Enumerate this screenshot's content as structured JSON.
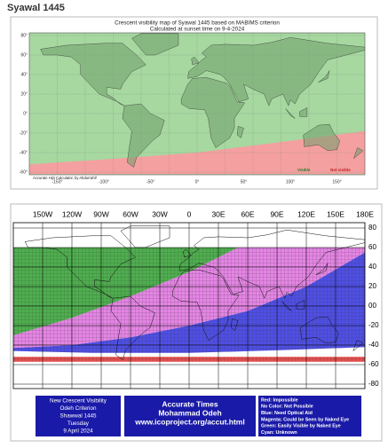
{
  "heading": "Syawal 1445",
  "map1": {
    "title": [
      "Crescent visibility map of Syawal 1445 based on MABIMS criterion",
      "Calculated at sunset time on 9-4-2024"
    ],
    "y_labels": [
      "80°",
      "60°",
      "40°",
      "20°",
      "0°",
      "-20°",
      "-40°",
      "-60°"
    ],
    "x_labels": [
      "-150°",
      "-100°",
      "-50°",
      "0°",
      "50°",
      "100°",
      "150°"
    ],
    "credit": "Accurate Hijri Calculator, by Abdurrahif",
    "legend": [
      "Visible",
      "Not visible"
    ]
  },
  "map2": {
    "lon_labels": [
      "150W",
      "120W",
      "90W",
      "60W",
      "30W",
      "0",
      "30E",
      "60E",
      "90E",
      "120E",
      "150E",
      "180E"
    ],
    "lat_labels": [
      "80",
      "60",
      "40",
      "20",
      "00",
      "-20",
      "-40",
      "-60",
      "-80"
    ],
    "info_box": [
      "New Crescent Visibility",
      "Odeh Criterion",
      "Shawwal 1445",
      "Tuesday",
      "9 April 2024"
    ],
    "times_box": [
      "Accurate Times",
      "Mohammad Odeh",
      "www.icoproject.org/accut.html"
    ],
    "legend": [
      "Red: Impossible",
      "No Color: Not Possible",
      "Blue: Need Optical Aid",
      "Magenta: Could be Seen by Naked Eye",
      "Green: Easily Visible by Naked Eye",
      "Cyan: Unknown"
    ]
  }
}
